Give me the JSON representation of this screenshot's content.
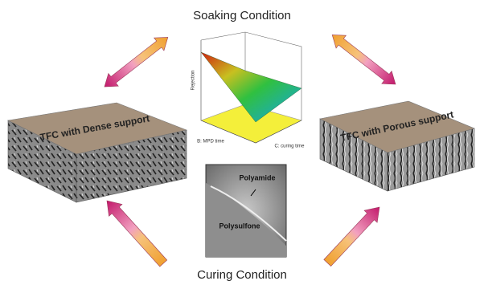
{
  "header": {
    "top": "Soaking Condition",
    "bottom": "Curing Condition"
  },
  "blocks": [
    {
      "label": "TFC with Dense support"
    },
    {
      "label": "TFC with  Porous support"
    }
  ],
  "plot": {
    "z_label": "Rejection",
    "x_label": "B: MPD time",
    "y_label": "C: curing time"
  },
  "inset": {
    "top_layer": "Polyamide",
    "bottom_layer": "Polysulfone"
  }
}
